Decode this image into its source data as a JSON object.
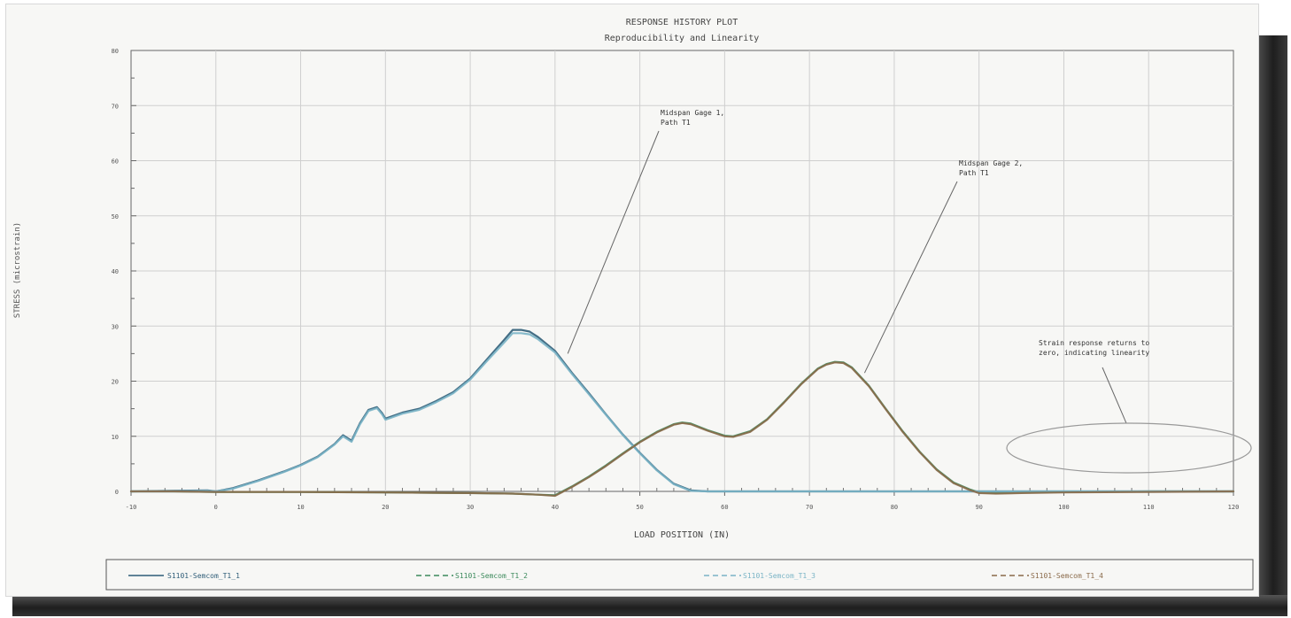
{
  "chart_data": {
    "type": "line",
    "title": "RESPONSE HISTORY PLOT",
    "subtitle": "Reproducibility and Linearity",
    "xlabel": "LOAD POSITION (IN)",
    "ylabel": "STRESS (microstrain)",
    "xlim": [
      -10,
      120
    ],
    "ylim": [
      0,
      80
    ],
    "x_ticks": [
      -10,
      0,
      10,
      20,
      30,
      40,
      50,
      60,
      70,
      80,
      90,
      100,
      110,
      120
    ],
    "y_ticks": [
      0,
      5,
      10,
      15,
      20,
      25,
      30,
      35,
      40,
      45,
      50,
      55,
      60,
      65,
      70,
      75,
      80
    ],
    "grid": true,
    "legend_position": "bottom",
    "series": [
      {
        "name": "S1101-Semcom_T1_1",
        "color": "#2f5d78",
        "style": "solid",
        "points": [
          [
            -10,
            0.0
          ],
          [
            -5,
            0.1
          ],
          [
            -1,
            0.2
          ],
          [
            0,
            0.0
          ],
          [
            2,
            0.6
          ],
          [
            5,
            2.0
          ],
          [
            8,
            3.6
          ],
          [
            10,
            4.8
          ],
          [
            12,
            6.3
          ],
          [
            14,
            8.6
          ],
          [
            15,
            10.2
          ],
          [
            16,
            9.2
          ],
          [
            17,
            12.4
          ],
          [
            18,
            14.8
          ],
          [
            19,
            15.3
          ],
          [
            19.6,
            14.2
          ],
          [
            20,
            13.2
          ],
          [
            22,
            14.3
          ],
          [
            24,
            15.0
          ],
          [
            26,
            16.4
          ],
          [
            28,
            18.0
          ],
          [
            30,
            20.5
          ],
          [
            32,
            24.0
          ],
          [
            34,
            27.5
          ],
          [
            35,
            29.3
          ],
          [
            36,
            29.3
          ],
          [
            37,
            29.0
          ],
          [
            38,
            28.0
          ],
          [
            40,
            25.5
          ],
          [
            42,
            21.5
          ],
          [
            44,
            17.8
          ],
          [
            46,
            14.0
          ],
          [
            48,
            10.3
          ],
          [
            50,
            7.0
          ],
          [
            52,
            3.9
          ],
          [
            54,
            1.4
          ],
          [
            56,
            0.2
          ],
          [
            58,
            0.0
          ],
          [
            60,
            0.0
          ],
          [
            70,
            0.0
          ],
          [
            80,
            0.0
          ],
          [
            90,
            0.0
          ],
          [
            100,
            0.0
          ],
          [
            110,
            0.0
          ],
          [
            120,
            0.0
          ]
        ]
      },
      {
        "name": "S1101-Semcom_T1_2",
        "color": "#3c8a5c",
        "style": "dashed",
        "points": [
          [
            -10,
            0.0
          ],
          [
            -5,
            0.0
          ],
          [
            0,
            -0.1
          ],
          [
            10,
            -0.1
          ],
          [
            20,
            -0.2
          ],
          [
            30,
            -0.3
          ],
          [
            35,
            -0.4
          ],
          [
            38,
            -0.6
          ],
          [
            40,
            -0.7
          ],
          [
            42,
            0.9
          ],
          [
            44,
            2.7
          ],
          [
            46,
            4.7
          ],
          [
            48,
            6.9
          ],
          [
            50,
            9.0
          ],
          [
            52,
            10.8
          ],
          [
            54,
            12.2
          ],
          [
            55,
            12.5
          ],
          [
            56,
            12.3
          ],
          [
            58,
            11.1
          ],
          [
            60,
            10.1
          ],
          [
            61,
            10.0
          ],
          [
            63,
            10.9
          ],
          [
            65,
            13.1
          ],
          [
            67,
            16.2
          ],
          [
            69,
            19.5
          ],
          [
            71,
            22.3
          ],
          [
            72,
            23.1
          ],
          [
            73,
            23.5
          ],
          [
            74,
            23.4
          ],
          [
            75,
            22.5
          ],
          [
            77,
            19.2
          ],
          [
            79,
            15.0
          ],
          [
            81,
            10.9
          ],
          [
            83,
            7.2
          ],
          [
            85,
            4.0
          ],
          [
            87,
            1.6
          ],
          [
            89,
            0.3
          ],
          [
            90,
            -0.2
          ],
          [
            92,
            -0.3
          ],
          [
            95,
            -0.2
          ],
          [
            100,
            -0.1
          ],
          [
            110,
            0.0
          ],
          [
            120,
            0.0
          ]
        ]
      },
      {
        "name": "S1101-Semcom_T1_3",
        "color": "#7ab4c6",
        "style": "dashed",
        "points": [
          [
            -10,
            0.0
          ],
          [
            -5,
            0.0
          ],
          [
            -1,
            0.1
          ],
          [
            0,
            0.0
          ],
          [
            2,
            0.5
          ],
          [
            5,
            1.9
          ],
          [
            8,
            3.5
          ],
          [
            10,
            4.7
          ],
          [
            12,
            6.2
          ],
          [
            14,
            8.5
          ],
          [
            15,
            10.0
          ],
          [
            16,
            9.0
          ],
          [
            17,
            12.2
          ],
          [
            18,
            14.6
          ],
          [
            19,
            15.1
          ],
          [
            19.6,
            14.0
          ],
          [
            20,
            13.0
          ],
          [
            22,
            14.1
          ],
          [
            24,
            14.8
          ],
          [
            26,
            16.2
          ],
          [
            28,
            17.8
          ],
          [
            30,
            20.3
          ],
          [
            32,
            23.7
          ],
          [
            34,
            27.0
          ],
          [
            35,
            28.7
          ],
          [
            36,
            28.7
          ],
          [
            37,
            28.5
          ],
          [
            38,
            27.6
          ],
          [
            40,
            25.2
          ],
          [
            42,
            21.3
          ],
          [
            44,
            17.6
          ],
          [
            46,
            13.9
          ],
          [
            48,
            10.2
          ],
          [
            50,
            6.9
          ],
          [
            52,
            3.8
          ],
          [
            54,
            1.3
          ],
          [
            56,
            0.1
          ],
          [
            58,
            0.0
          ],
          [
            60,
            0.0
          ],
          [
            70,
            0.0
          ],
          [
            80,
            0.0
          ],
          [
            90,
            0.0
          ],
          [
            100,
            0.0
          ],
          [
            110,
            0.0
          ],
          [
            120,
            0.0
          ]
        ]
      },
      {
        "name": "S1101-Semcom_T1_4",
        "color": "#8a6a4a",
        "style": "dashed",
        "points": [
          [
            -10,
            0.0
          ],
          [
            -5,
            0.0
          ],
          [
            0,
            -0.1
          ],
          [
            10,
            -0.1
          ],
          [
            20,
            -0.2
          ],
          [
            30,
            -0.3
          ],
          [
            35,
            -0.4
          ],
          [
            38,
            -0.6
          ],
          [
            40,
            -0.8
          ],
          [
            42,
            0.8
          ],
          [
            44,
            2.6
          ],
          [
            46,
            4.6
          ],
          [
            48,
            6.8
          ],
          [
            50,
            8.9
          ],
          [
            52,
            10.7
          ],
          [
            54,
            12.1
          ],
          [
            55,
            12.4
          ],
          [
            56,
            12.2
          ],
          [
            58,
            11.0
          ],
          [
            60,
            10.0
          ],
          [
            61,
            9.9
          ],
          [
            63,
            10.8
          ],
          [
            65,
            13.0
          ],
          [
            67,
            16.1
          ],
          [
            69,
            19.4
          ],
          [
            71,
            22.2
          ],
          [
            72,
            23.0
          ],
          [
            73,
            23.4
          ],
          [
            74,
            23.3
          ],
          [
            75,
            22.4
          ],
          [
            77,
            19.1
          ],
          [
            79,
            14.9
          ],
          [
            81,
            10.8
          ],
          [
            83,
            7.1
          ],
          [
            85,
            3.9
          ],
          [
            87,
            1.5
          ],
          [
            89,
            0.2
          ],
          [
            90,
            -0.3
          ],
          [
            92,
            -0.4
          ],
          [
            95,
            -0.3
          ],
          [
            100,
            -0.2
          ],
          [
            110,
            -0.1
          ],
          [
            120,
            0.0
          ]
        ]
      }
    ],
    "annotations": [
      {
        "text": [
          "Midspan Gage 1,",
          "Path T1"
        ],
        "target": [
          41.5,
          25.0
        ]
      },
      {
        "text": [
          "Midspan Gage 2,",
          "Path T1"
        ],
        "target": [
          76.5,
          21.5
        ]
      },
      {
        "text": [
          "Strain response returns to",
          "zero, indicating linearity"
        ],
        "target": [
          102,
          1.5
        ]
      }
    ]
  }
}
